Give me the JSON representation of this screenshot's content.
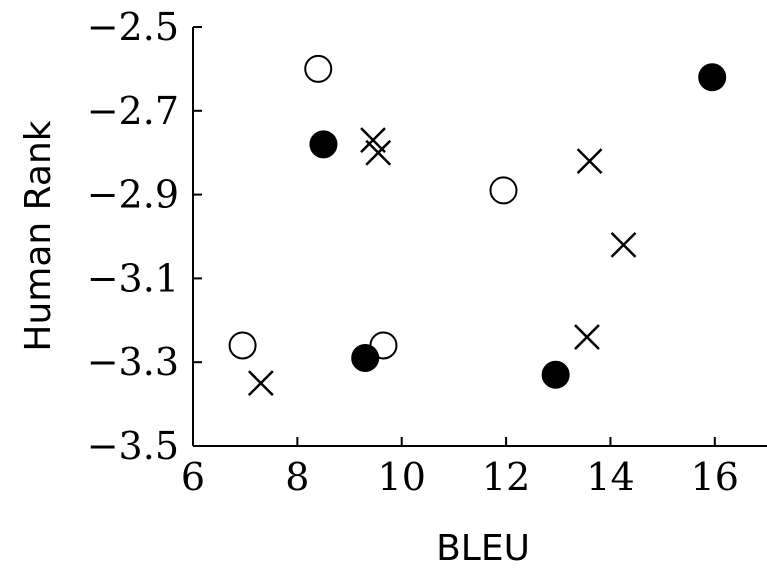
{
  "chart_data": {
    "type": "scatter",
    "xlabel": "BLEU",
    "ylabel": "Human Rank",
    "xlim": [
      6,
      17
    ],
    "ylim": [
      -3.5,
      -2.5
    ],
    "xticks": [
      6,
      8,
      10,
      12,
      14,
      16
    ],
    "yticks": [
      -2.5,
      -2.7,
      -2.9,
      -3.1,
      -3.3,
      -3.5
    ],
    "xtick_labels": [
      "6",
      "8",
      "10",
      "12",
      "14",
      "16"
    ],
    "ytick_labels": [
      "−2.5",
      "−2.7",
      "−2.9",
      "−3.1",
      "−3.3",
      "−3.5"
    ],
    "grid": false,
    "series": [
      {
        "marker": "open-circle",
        "points": [
          {
            "x": 6.95,
            "y": -3.26
          },
          {
            "x": 8.4,
            "y": -2.6
          },
          {
            "x": 9.65,
            "y": -3.26
          },
          {
            "x": 11.95,
            "y": -2.89
          }
        ]
      },
      {
        "marker": "filled-circle",
        "points": [
          {
            "x": 8.5,
            "y": -2.78
          },
          {
            "x": 9.3,
            "y": -3.29
          },
          {
            "x": 12.95,
            "y": -3.33
          },
          {
            "x": 15.95,
            "y": -2.62
          }
        ]
      },
      {
        "marker": "cross",
        "points": [
          {
            "x": 7.3,
            "y": -3.35
          },
          {
            "x": 9.45,
            "y": -2.77
          },
          {
            "x": 9.55,
            "y": -2.8
          },
          {
            "x": 13.6,
            "y": -2.82
          },
          {
            "x": 14.25,
            "y": -3.02
          },
          {
            "x": 13.55,
            "y": -3.24
          }
        ]
      }
    ]
  }
}
